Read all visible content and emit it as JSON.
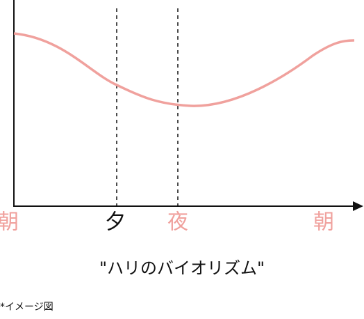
{
  "axis_labels": [
    "朝",
    "夕",
    "夜",
    "朝"
  ],
  "caption": "\"ハリのバイオリズム\"",
  "note": "*イメージ図"
}
